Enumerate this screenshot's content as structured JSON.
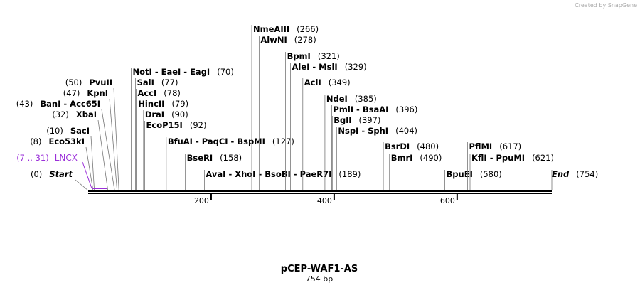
{
  "watermark": "Created by SnapGene",
  "title": "pCEP-WAF1-AS",
  "length": 754,
  "length_label": "754 bp",
  "ruler_ticks": [
    200,
    400,
    600
  ],
  "start": {
    "label": "Start",
    "position": 0,
    "position_label": "(0)"
  },
  "end": {
    "label": "End",
    "position": 754,
    "position_label": "(754)"
  },
  "feature": {
    "label": "LNCX",
    "range_label": "(7 .. 31)",
    "start": 7,
    "end": 31
  },
  "enzymes": [
    {
      "label": "Eco53kI",
      "position": 8,
      "position_label": "(8)"
    },
    {
      "label": "SacI",
      "position": 10,
      "position_label": "(10)"
    },
    {
      "label": "XbaI",
      "position": 32,
      "position_label": "(32)"
    },
    {
      "label": "BanI  -  Acc65I",
      "position": 43,
      "position_label": "(43)"
    },
    {
      "label": "KpnI",
      "position": 47,
      "position_label": "(47)"
    },
    {
      "label": "PvuII",
      "position": 50,
      "position_label": "(50)"
    },
    {
      "label": "NotI  -  EaeI  -  EagI",
      "position": 70,
      "position_label": "(70)"
    },
    {
      "label": "SalI",
      "position": 77,
      "position_label": "(77)"
    },
    {
      "label": "AccI",
      "position": 78,
      "position_label": "(78)"
    },
    {
      "label": "HincII",
      "position": 79,
      "position_label": "(79)"
    },
    {
      "label": "DraI",
      "position": 90,
      "position_label": "(90)"
    },
    {
      "label": "EcoP15I",
      "position": 92,
      "position_label": "(92)"
    },
    {
      "label": "BfuAI  -  PaqCI  -  BspMI",
      "position": 127,
      "position_label": "(127)"
    },
    {
      "label": "BseRI",
      "position": 158,
      "position_label": "(158)"
    },
    {
      "label": "AvaI  -  XhoI  -  BsoBI  -  PaeR7I",
      "position": 189,
      "position_label": "(189)"
    },
    {
      "label": "NmeAIII",
      "position": 266,
      "position_label": "(266)"
    },
    {
      "label": "AlwNI",
      "position": 278,
      "position_label": "(278)"
    },
    {
      "label": "BpmI",
      "position": 321,
      "position_label": "(321)"
    },
    {
      "label": "AleI  -  MslI",
      "position": 329,
      "position_label": "(329)"
    },
    {
      "label": "AclI",
      "position": 349,
      "position_label": "(349)"
    },
    {
      "label": "NdeI",
      "position": 385,
      "position_label": "(385)"
    },
    {
      "label": "PmlI  -  BsaAI",
      "position": 396,
      "position_label": "(396)"
    },
    {
      "label": "BglI",
      "position": 397,
      "position_label": "(397)"
    },
    {
      "label": "NspI  -  SphI",
      "position": 404,
      "position_label": "(404)"
    },
    {
      "label": "BsrDI",
      "position": 480,
      "position_label": "(480)"
    },
    {
      "label": "BmrI",
      "position": 490,
      "position_label": "(490)"
    },
    {
      "label": "BpuEI",
      "position": 580,
      "position_label": "(580)"
    },
    {
      "label": "PflMI",
      "position": 617,
      "position_label": "(617)"
    },
    {
      "label": "KflI  -  PpuMI",
      "position": 621,
      "position_label": "(621)"
    }
  ]
}
